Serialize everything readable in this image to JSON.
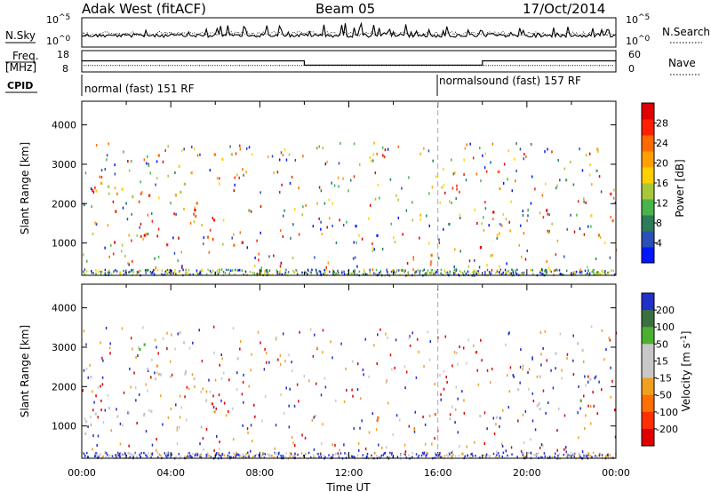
{
  "header": {
    "station": "Adak West (fitACF)",
    "beam": "Beam 05",
    "date": "17/Oct/2014"
  },
  "panels": {
    "nsky_label": "N.Sky",
    "nsearch_label": "N.Search",
    "freq_label_1": "Freq.",
    "freq_label_2": "[MHz]",
    "nave_label": "Nave",
    "cpid_label": "CPID",
    "nsky_ticks": [
      "10^5",
      "10^0"
    ],
    "nsearch_ticks": [
      "10^5",
      "10^0"
    ],
    "freq_ticks": [
      "18",
      "8"
    ],
    "nave_ticks": [
      "60",
      "0"
    ],
    "cpid_modes": [
      {
        "label": "normal (fast) 151 RF",
        "start_hour": 0
      },
      {
        "label": "normalsound (fast) 157 RF",
        "start_hour": 16
      }
    ]
  },
  "chart_data": [
    {
      "type": "line",
      "name": "sky-noise-search-noise",
      "x_range_hours": [
        0,
        24
      ],
      "y_scale": "log",
      "y_ticks": [
        "10^5",
        "10^0"
      ],
      "description_series": [
        {
          "name": "N.Sky",
          "style": "solid"
        },
        {
          "name": "N.Search",
          "style": "dotted"
        }
      ]
    },
    {
      "type": "line",
      "name": "frequency-nave",
      "x_range_hours": [
        0,
        24
      ],
      "series": [
        {
          "name": "Freq.",
          "style": "solid",
          "units": "MHz",
          "steps": [
            [
              0,
              13.2
            ],
            [
              10,
              13.2
            ],
            [
              10,
              11.2
            ],
            [
              18,
              11.2
            ],
            [
              18,
              13.2
            ],
            [
              24,
              13.2
            ]
          ]
        },
        {
          "name": "Nave",
          "style": "dotted",
          "value": 18
        }
      ],
      "ylim_left": [
        8,
        18
      ],
      "ylim_right": [
        0,
        60
      ]
    },
    {
      "type": "heatmap",
      "name": "power",
      "xlabel": "",
      "ylabel": "Slant Range [km]",
      "x_range_hours": [
        0,
        24
      ],
      "ylim": [
        180,
        4600
      ],
      "y_ticks": [
        1000,
        2000,
        3000,
        4000
      ],
      "colorbar": {
        "label": "Power [dB]",
        "ticks": [
          4,
          8,
          12,
          16,
          20,
          24,
          28
        ],
        "colors": [
          "#0018ff",
          "#2a4fb8",
          "#2b7d5a",
          "#4ab34a",
          "#a8c83a",
          "#ffd000",
          "#ffa000",
          "#ff6a00",
          "#ff2000",
          "#e00000"
        ]
      },
      "regions": [
        {
          "h0": 0.0,
          "h1": 7.6,
          "r0": 800,
          "r1": 2600,
          "level": 0.85
        },
        {
          "h0": 0.2,
          "h1": 6.8,
          "r0": 2200,
          "r1": 3400,
          "level": 0.55
        },
        {
          "h0": 3.5,
          "h1": 7.5,
          "r0": 1700,
          "r1": 3300,
          "level": 0.6
        },
        {
          "h0": 8.0,
          "h1": 8.7,
          "r0": 1600,
          "r1": 2200,
          "level": 0.15
        },
        {
          "h0": 11.5,
          "h1": 14.0,
          "r0": 1100,
          "r1": 1700,
          "level": 0.1
        },
        {
          "h0": 14.3,
          "h1": 16.5,
          "r0": 1300,
          "r1": 1700,
          "level": 0.1
        },
        {
          "h0": 15.6,
          "h1": 18.5,
          "r0": 700,
          "r1": 1400,
          "level": 0.8
        },
        {
          "h0": 18.4,
          "h1": 24.0,
          "r0": 1200,
          "r1": 2500,
          "level": 0.72
        },
        {
          "h0": 21.0,
          "h1": 24.0,
          "r0": 2600,
          "r1": 3500,
          "level": 0.5
        }
      ]
    },
    {
      "type": "heatmap",
      "name": "velocity",
      "xlabel": "Time UT",
      "ylabel": "Slant Range [km]",
      "x_range_hours": [
        0,
        24
      ],
      "ylim": [
        180,
        4600
      ],
      "y_ticks": [
        1000,
        2000,
        3000,
        4000
      ],
      "x_ticks": [
        "00:00",
        "04:00",
        "08:00",
        "12:00",
        "16:00",
        "20:00",
        "00:00"
      ],
      "colorbar": {
        "label": "Velocity [m s⁻¹]",
        "ticks": [
          200,
          100,
          50,
          15,
          -15,
          -50,
          -100,
          -200
        ],
        "colors": [
          "#2030c8",
          "#3a7040",
          "#4cb030",
          "#c8c8c8",
          "#c8c8c8",
          "#f0a020",
          "#ff7000",
          "#ff3000",
          "#e00000"
        ]
      },
      "regions": [
        {
          "h0": 0.0,
          "h1": 7.8,
          "r0": 800,
          "r1": 2600,
          "vel": 0
        },
        {
          "h0": 0.3,
          "h1": 7.0,
          "r0": 2200,
          "r1": 3300,
          "vel": 5
        },
        {
          "h0": 11.0,
          "h1": 14.3,
          "r0": 1100,
          "r1": 1600,
          "vel": -60
        },
        {
          "h0": 14.3,
          "h1": 16.5,
          "r0": 1200,
          "r1": 1700,
          "vel": -70
        },
        {
          "h0": 15.8,
          "h1": 18.5,
          "r0": 700,
          "r1": 1400,
          "vel": 0
        },
        {
          "h0": 18.4,
          "h1": 24.0,
          "r0": 1200,
          "r1": 2500,
          "vel": 0
        },
        {
          "h0": 21.0,
          "h1": 24.0,
          "r0": 2600,
          "r1": 3500,
          "vel": 10
        }
      ]
    }
  ]
}
